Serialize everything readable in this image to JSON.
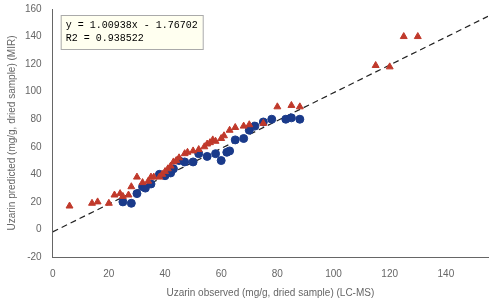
{
  "chart_data": {
    "type": "scatter",
    "title": "",
    "xlabel": "Uzarin observed (mg/g, dried sample) (LC-MS)",
    "ylabel": "Uzarin predicted (mg/g, dried sample) (MIR)",
    "xlim": [
      0,
      155
    ],
    "ylim": [
      -20,
      160
    ],
    "xticks": [
      0,
      20,
      40,
      60,
      80,
      100,
      120,
      140
    ],
    "yticks": [
      -20,
      0,
      20,
      40,
      60,
      80,
      100,
      120,
      140,
      160
    ],
    "grid": false,
    "annotations": [
      "y = 1.00938x - 1.76702",
      "R2 = 0.938522"
    ],
    "series": [
      {
        "type": "scatter",
        "color": "#c0392b",
        "marker": "triangle",
        "x": [
          6,
          14,
          16,
          20,
          22,
          24,
          25,
          27,
          28,
          30,
          32,
          34,
          35,
          36,
          38,
          39,
          40,
          41,
          42,
          43,
          44,
          45,
          47,
          48,
          50,
          52,
          54,
          55,
          56,
          57,
          58,
          60,
          61,
          63,
          65,
          68,
          70,
          75,
          80,
          85,
          88,
          115,
          120,
          125,
          130
        ],
        "values": [
          17,
          19,
          20,
          19,
          25,
          26,
          24,
          25,
          31,
          38,
          34,
          35,
          38,
          38,
          38,
          40,
          42,
          44,
          46,
          49,
          50,
          52,
          55,
          56,
          57,
          58,
          60,
          62,
          63,
          65,
          64,
          66,
          68,
          72,
          74,
          75,
          76,
          77,
          89,
          90,
          89,
          119,
          118,
          140,
          140
        ]
      },
      {
        "type": "scatter",
        "color": "#1a3a8a",
        "marker": "circle",
        "x": [
          25,
          28,
          30,
          32,
          33,
          35,
          38,
          40,
          42,
          43,
          45,
          47,
          50,
          52,
          55,
          58,
          60,
          62,
          63,
          65,
          68,
          70,
          72,
          75,
          78,
          83,
          85,
          88
        ],
        "values": [
          20,
          19,
          26,
          31,
          30,
          33,
          40,
          39,
          41,
          44,
          50,
          49,
          49,
          55,
          53,
          55,
          50,
          56,
          57,
          65,
          66,
          72,
          75,
          78,
          80,
          80,
          81,
          80
        ]
      },
      {
        "type": "line",
        "color": "#222222",
        "line_style": "dashed",
        "x": [
          0,
          155
        ],
        "values": [
          -1.76702,
          154.68688
        ]
      }
    ]
  }
}
